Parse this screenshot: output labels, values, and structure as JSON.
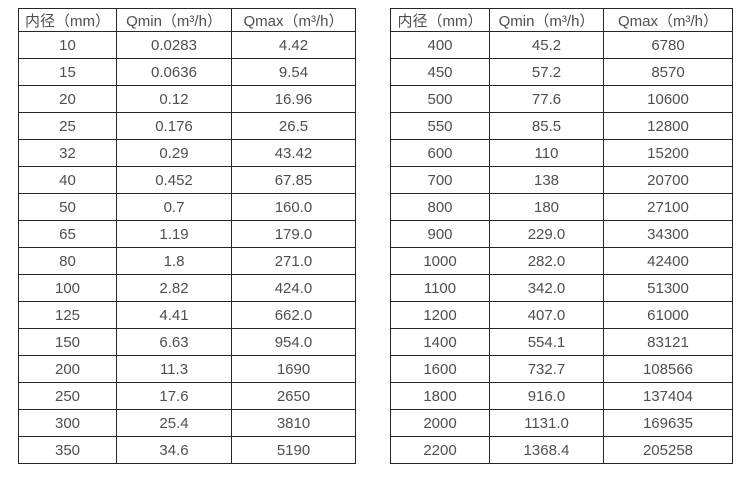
{
  "page": {
    "background": "#ffffff",
    "text_color": "#4f4f4f",
    "border_color": "#262626"
  },
  "tables": [
    {
      "name": "flow-rate-table-small-diameters",
      "headers": [
        "内径（mm）",
        "Qmin（m³/h）",
        "Qmax（m³/h）"
      ],
      "rows": [
        [
          "10",
          "0.0283",
          "4.42"
        ],
        [
          "15",
          "0.0636",
          "9.54"
        ],
        [
          "20",
          "0.12",
          "16.96"
        ],
        [
          "25",
          "0.176",
          "26.5"
        ],
        [
          "32",
          "0.29",
          "43.42"
        ],
        [
          "40",
          "0.452",
          "67.85"
        ],
        [
          "50",
          "0.7",
          "160.0"
        ],
        [
          "65",
          "1.19",
          "179.0"
        ],
        [
          "80",
          "1.8",
          "271.0"
        ],
        [
          "100",
          "2.82",
          "424.0"
        ],
        [
          "125",
          "4.41",
          "662.0"
        ],
        [
          "150",
          "6.63",
          "954.0"
        ],
        [
          "200",
          "11.3",
          "1690"
        ],
        [
          "250",
          "17.6",
          "2650"
        ],
        [
          "300",
          "25.4",
          "3810"
        ],
        [
          "350",
          "34.6",
          "5190"
        ]
      ]
    },
    {
      "name": "flow-rate-table-large-diameters",
      "headers": [
        "内径（mm）",
        "Qmin（m³/h）",
        "Qmax（m³/h）"
      ],
      "rows": [
        [
          "400",
          "45.2",
          "6780"
        ],
        [
          "450",
          "57.2",
          "8570"
        ],
        [
          "500",
          "77.6",
          "10600"
        ],
        [
          "550",
          "85.5",
          "12800"
        ],
        [
          "600",
          "110",
          "15200"
        ],
        [
          "700",
          "138",
          "20700"
        ],
        [
          "800",
          "180",
          "27100"
        ],
        [
          "900",
          "229.0",
          "34300"
        ],
        [
          "1000",
          "282.0",
          "42400"
        ],
        [
          "1100",
          "342.0",
          "51300"
        ],
        [
          "1200",
          "407.0",
          "61000"
        ],
        [
          "1400",
          "554.1",
          "83121"
        ],
        [
          "1600",
          "732.7",
          "108566"
        ],
        [
          "1800",
          "916.0",
          "137404"
        ],
        [
          "2000",
          "1131.0",
          "169635"
        ],
        [
          "2200",
          "1368.4",
          "205258"
        ]
      ]
    }
  ],
  "cell_names": [
    "diameter-cell",
    "qmin-cell",
    "qmax-cell"
  ]
}
